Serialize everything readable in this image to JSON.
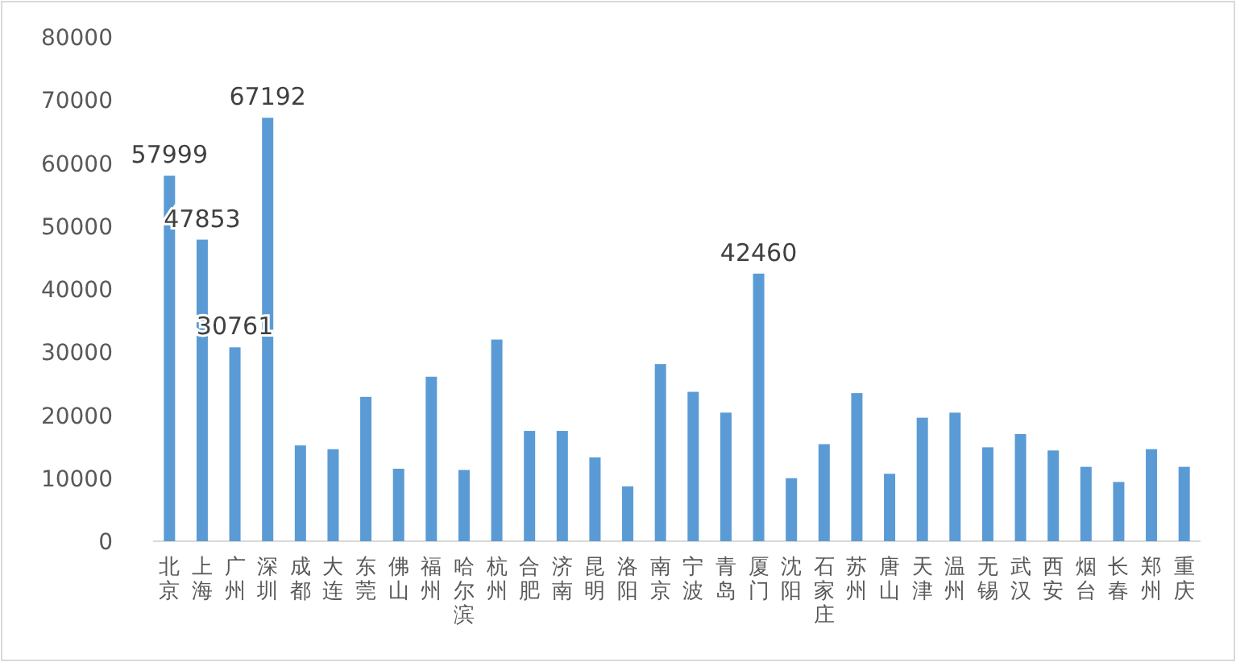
{
  "chart_data": {
    "type": "bar",
    "categories": [
      "北京",
      "上海",
      "广州",
      "深圳",
      "成都",
      "大连",
      "东莞",
      "佛山",
      "福州",
      "哈尔滨",
      "杭州",
      "合肥",
      "济南",
      "昆明",
      "洛阳",
      "南京",
      "宁波",
      "青岛",
      "厦门",
      "沈阳",
      "石家庄",
      "苏州",
      "唐山",
      "天津",
      "温州",
      "无锡",
      "武汉",
      "西安",
      "烟台",
      "长春",
      "郑州",
      "重庆"
    ],
    "values": [
      57999,
      47853,
      30761,
      67192,
      15200,
      14600,
      22900,
      11500,
      26100,
      11300,
      32000,
      17500,
      17500,
      13300,
      8700,
      28100,
      23700,
      20400,
      42460,
      10000,
      15400,
      23500,
      10700,
      19600,
      20400,
      14900,
      17000,
      14400,
      11800,
      9400,
      14600,
      11800
    ],
    "value_labels": [
      "57999",
      "47853",
      "30761",
      "67192",
      null,
      null,
      null,
      null,
      null,
      null,
      null,
      null,
      null,
      null,
      null,
      null,
      null,
      null,
      "42460",
      null,
      null,
      null,
      null,
      null,
      null,
      null,
      null,
      null,
      null,
      null,
      null,
      null
    ],
    "color": "#5b9bd5",
    "ylim": [
      0,
      80000
    ],
    "yticks": [
      0,
      10000,
      20000,
      30000,
      40000,
      50000,
      60000,
      70000,
      80000
    ]
  }
}
